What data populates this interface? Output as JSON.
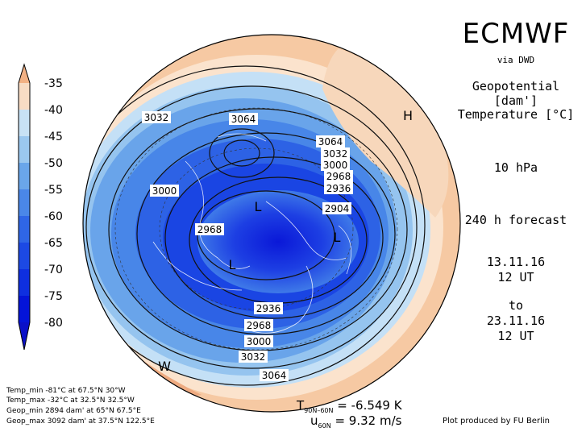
{
  "header": {
    "title": "ECMWF",
    "source": "via DWD",
    "field1": "Geopotential [dam']",
    "field2": "Temperature [°C]",
    "level": "10 hPa",
    "forecast": "240 h forecast",
    "start_date": "13.11.16",
    "start_time": "12 UT",
    "to": "to",
    "end_date": "23.11.16",
    "end_time": "12 UT"
  },
  "colorbar": {
    "labels": [
      "-35",
      "-40",
      "-45",
      "-50",
      "-55",
      "-60",
      "-65",
      "-70",
      "-75",
      "-80"
    ],
    "colors": [
      "#f2b184",
      "#f8dcc4",
      "#c8e2f5",
      "#9bc8ef",
      "#6aa6ea",
      "#4a87e8",
      "#2f66e6",
      "#1c49e4",
      "#0e2fe0",
      "#0414d8",
      "#0a10c8"
    ]
  },
  "stats": {
    "temp_min": "Temp_min -81°C at 67.5°N 30°W",
    "temp_max": "Temp_max -32°C at 32.5°N 32.5°W",
    "geop_min": "Geop_min 2894 dam' at 65°N 67.5°E",
    "geop_max": "Geop_max 3092 dam' at 37.5°N 122.5°E"
  },
  "indices": {
    "t_label": "T",
    "t_sub": "90N–60N",
    "t_value": "= -6.549 K",
    "u_label": "u",
    "u_sub": "60N",
    "u_value": "= 9.32 m/s"
  },
  "credit": "Plot produced by FU Berlin",
  "map": {
    "contour_labels": [
      "3032",
      "3064",
      "3064",
      "3032",
      "3000",
      "2968",
      "2936",
      "3000",
      "2904",
      "2968",
      "2936",
      "2968",
      "3000",
      "3032",
      "3064"
    ],
    "markers": {
      "high": "H",
      "low1": "L",
      "low2": "L",
      "low3": "L",
      "warm": "W"
    }
  }
}
